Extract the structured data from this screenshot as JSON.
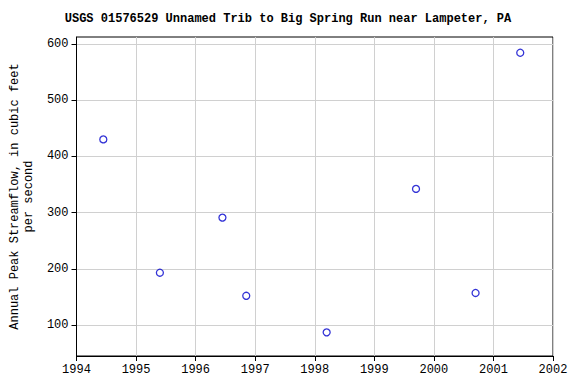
{
  "chart_data": {
    "type": "scatter",
    "title": "USGS 01576529 Unnamed Trib to Big Spring Run near Lampeter, PA",
    "y_label": "Annual Peak Streamflow, in cubic feet\nper second",
    "x": [
      1994.45,
      1995.4,
      1996.45,
      1996.85,
      1998.2,
      1999.7,
      2000.7,
      2001.45
    ],
    "values": [
      430,
      193,
      291,
      152,
      87,
      342,
      157,
      584
    ],
    "color": "#0000cc",
    "marker": "hollow_circle",
    "xlim": [
      1994,
      2002
    ],
    "xticks": [
      1994,
      1995,
      1996,
      1997,
      1998,
      1999,
      2000,
      2001,
      2002
    ],
    "ylim": [
      45,
      612
    ],
    "yticks": [
      100,
      200,
      300,
      400,
      500,
      600
    ],
    "grid": true
  }
}
